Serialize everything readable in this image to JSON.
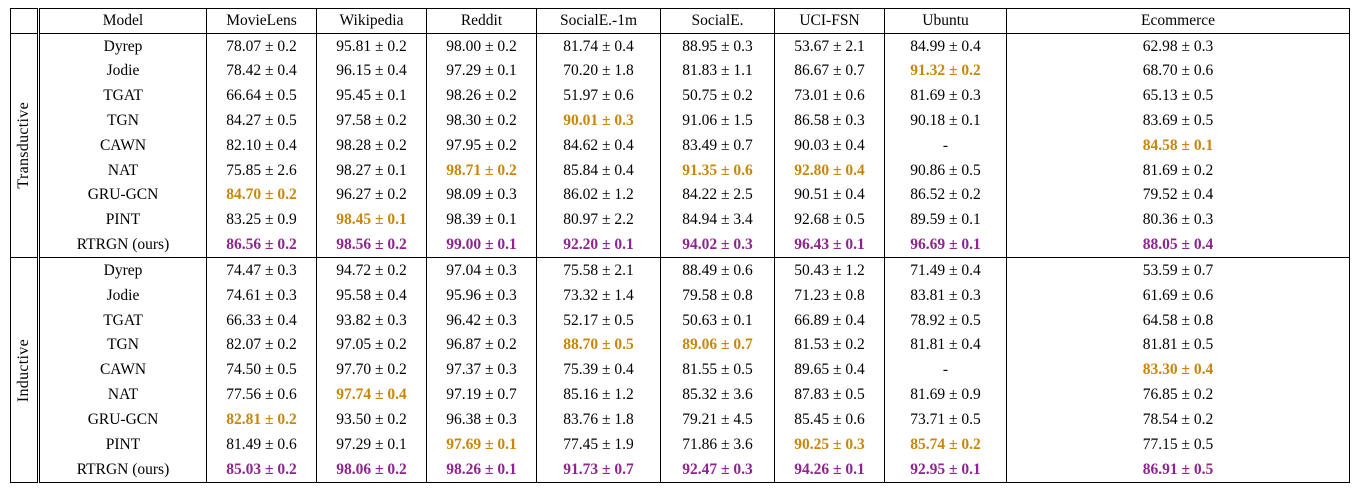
{
  "table": {
    "corner": "",
    "colors": {
      "second_best": "#C8860A",
      "best": "#8E248E"
    },
    "columns": [
      "Model",
      "MovieLens",
      "Wikipedia",
      "Reddit",
      "SocialE.-1m",
      "SocialE.",
      "UCI-FSN",
      "Ubuntu",
      "Ecommerce"
    ],
    "sections": [
      {
        "label": "Transductive",
        "rows": [
          {
            "model": "Dyrep",
            "values": [
              "78.07 ± 0.2",
              "95.81 ± 0.2",
              "98.00 ± 0.2",
              "81.74 ± 0.4",
              "88.95 ± 0.3",
              "53.67 ± 2.1",
              "84.99 ± 0.4",
              "62.98 ± 0.3"
            ],
            "highlights": [
              "",
              "",
              "",
              "",
              "",
              "",
              "",
              ""
            ]
          },
          {
            "model": "Jodie",
            "values": [
              "78.42 ± 0.4",
              "96.15 ± 0.4",
              "97.29 ± 0.1",
              "70.20 ± 1.8",
              "81.83 ± 1.1",
              "86.67 ± 0.7",
              "91.32 ± 0.2",
              "68.70 ± 0.6"
            ],
            "highlights": [
              "",
              "",
              "",
              "",
              "",
              "",
              "s",
              ""
            ]
          },
          {
            "model": "TGAT",
            "values": [
              "66.64 ± 0.5",
              "95.45 ± 0.1",
              "98.26 ± 0.2",
              "51.97 ± 0.6",
              "50.75 ± 0.2",
              "73.01 ± 0.6",
              "81.69 ± 0.3",
              "65.13 ± 0.5"
            ],
            "highlights": [
              "",
              "",
              "",
              "",
              "",
              "",
              "",
              ""
            ]
          },
          {
            "model": "TGN",
            "values": [
              "84.27 ± 0.5",
              "97.58 ± 0.2",
              "98.30 ± 0.2",
              "90.01 ± 0.3",
              "91.06 ± 1.5",
              "86.58 ± 0.3",
              "90.18 ± 0.1",
              "83.69 ± 0.5"
            ],
            "highlights": [
              "",
              "",
              "",
              "s",
              "",
              "",
              "",
              ""
            ]
          },
          {
            "model": "CAWN",
            "values": [
              "82.10 ± 0.4",
              "98.28 ± 0.2",
              "97.95 ± 0.2",
              "84.62 ± 0.4",
              "83.49 ± 0.7",
              "90.03 ± 0.4",
              "-",
              "84.58 ± 0.1"
            ],
            "highlights": [
              "",
              "",
              "",
              "",
              "",
              "",
              "",
              "s"
            ]
          },
          {
            "model": "NAT",
            "values": [
              "75.85 ± 2.6",
              "98.27 ± 0.1",
              "98.71 ± 0.2",
              "85.84 ± 0.4",
              "91.35 ± 0.6",
              "92.80 ± 0.4",
              "90.86 ± 0.5",
              "81.69 ± 0.2"
            ],
            "highlights": [
              "",
              "",
              "s",
              "",
              "s",
              "s",
              "",
              ""
            ]
          },
          {
            "model": "GRU-GCN",
            "values": [
              "84.70 ± 0.2",
              "96.27 ± 0.2",
              "98.09 ± 0.3",
              "86.02 ± 1.2",
              "84.22 ± 2.5",
              "90.51 ± 0.4",
              "86.52 ± 0.2",
              "79.52 ± 0.4"
            ],
            "highlights": [
              "s",
              "",
              "",
              "",
              "",
              "",
              "",
              ""
            ]
          },
          {
            "model": "PINT",
            "values": [
              "83.25 ± 0.9",
              "98.45 ± 0.1",
              "98.39 ± 0.1",
              "80.97 ± 2.2",
              "84.94 ± 3.4",
              "92.68 ± 0.5",
              "89.59 ± 0.1",
              "80.36 ± 0.3"
            ],
            "highlights": [
              "",
              "s",
              "",
              "",
              "",
              "",
              "",
              ""
            ]
          },
          {
            "model": "RTRGN (ours)",
            "values": [
              "86.56 ± 0.2",
              "98.56 ± 0.2",
              "99.00 ± 0.1",
              "92.20 ± 0.1",
              "94.02 ± 0.3",
              "96.43 ± 0.1",
              "96.69 ± 0.1",
              "88.05 ± 0.4"
            ],
            "highlights": [
              "b",
              "b",
              "b",
              "b",
              "b",
              "b",
              "b",
              "b"
            ]
          }
        ]
      },
      {
        "label": "Inductive",
        "rows": [
          {
            "model": "Dyrep",
            "values": [
              "74.47 ± 0.3",
              "94.72 ± 0.2",
              "97.04 ± 0.3",
              "75.58 ± 2.1",
              "88.49 ± 0.6",
              "50.43 ± 1.2",
              "71.49 ± 0.4",
              "53.59 ± 0.7"
            ],
            "highlights": [
              "",
              "",
              "",
              "",
              "",
              "",
              "",
              ""
            ]
          },
          {
            "model": "Jodie",
            "values": [
              "74.61 ± 0.3",
              "95.58 ± 0.4",
              "95.96 ± 0.3",
              "73.32 ± 1.4",
              "79.58 ± 0.8",
              "71.23 ± 0.8",
              "83.81 ± 0.3",
              "61.69 ± 0.6"
            ],
            "highlights": [
              "",
              "",
              "",
              "",
              "",
              "",
              "",
              ""
            ]
          },
          {
            "model": "TGAT",
            "values": [
              "66.33 ± 0.4",
              "93.82 ± 0.3",
              "96.42 ± 0.3",
              "52.17 ± 0.5",
              "50.63 ± 0.1",
              "66.89 ± 0.4",
              "78.92 ± 0.5",
              "64.58 ± 0.8"
            ],
            "highlights": [
              "",
              "",
              "",
              "",
              "",
              "",
              "",
              ""
            ]
          },
          {
            "model": "TGN",
            "values": [
              "82.07 ± 0.2",
              "97.05 ± 0.2",
              "96.87 ± 0.2",
              "88.70 ± 0.5",
              "89.06 ± 0.7",
              "81.53 ± 0.2",
              "81.81 ± 0.4",
              "81.81 ± 0.5"
            ],
            "highlights": [
              "",
              "",
              "",
              "s",
              "s",
              "",
              "",
              ""
            ]
          },
          {
            "model": "CAWN",
            "values": [
              "74.50 ± 0.5",
              "97.70 ± 0.2",
              "97.37 ± 0.3",
              "75.39 ± 0.4",
              "81.55 ± 0.5",
              "89.65 ± 0.4",
              "-",
              "83.30 ± 0.4"
            ],
            "highlights": [
              "",
              "",
              "",
              "",
              "",
              "",
              "",
              "s"
            ]
          },
          {
            "model": "NAT",
            "values": [
              "77.56 ± 0.6",
              "97.74 ± 0.4",
              "97.19 ± 0.7",
              "85.16 ± 1.2",
              "85.32 ± 3.6",
              "87.83 ± 0.5",
              "81.69 ± 0.9",
              "76.85 ± 0.2"
            ],
            "highlights": [
              "",
              "s",
              "",
              "",
              "",
              "",
              "",
              ""
            ]
          },
          {
            "model": "GRU-GCN",
            "values": [
              "82.81 ± 0.2",
              "93.50 ± 0.2",
              "96.38 ± 0.3",
              "83.76 ± 1.8",
              "79.21 ± 4.5",
              "85.45 ± 0.6",
              "73.71 ± 0.5",
              "78.54 ± 0.2"
            ],
            "highlights": [
              "s",
              "",
              "",
              "",
              "",
              "",
              "",
              ""
            ]
          },
          {
            "model": "PINT",
            "values": [
              "81.49 ± 0.6",
              "97.29 ± 0.1",
              "97.69 ± 0.1",
              "77.45 ± 1.9",
              "71.86 ± 3.6",
              "90.25 ± 0.3",
              "85.74 ± 0.2",
              "77.15 ± 0.5"
            ],
            "highlights": [
              "",
              "",
              "s",
              "",
              "",
              "s",
              "s",
              ""
            ]
          },
          {
            "model": "RTRGN (ours)",
            "values": [
              "85.03 ± 0.2",
              "98.06 ± 0.2",
              "98.26 ± 0.1",
              "91.73 ± 0.7",
              "92.47 ± 0.3",
              "94.26 ± 0.1",
              "92.95 ± 0.1",
              "86.91 ± 0.5"
            ],
            "highlights": [
              "b",
              "b",
              "b",
              "b",
              "b",
              "b",
              "b",
              "b"
            ]
          }
        ]
      }
    ]
  }
}
